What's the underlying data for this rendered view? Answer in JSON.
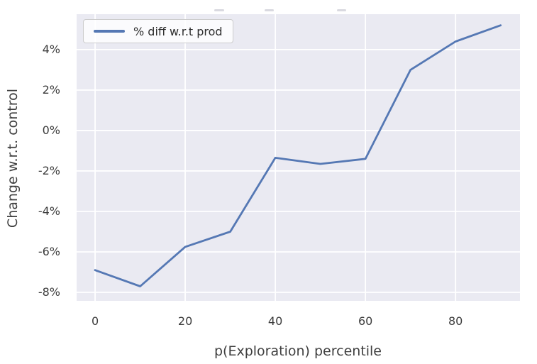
{
  "chart_data": {
    "type": "line",
    "title": "",
    "x": [
      0,
      10,
      20,
      30,
      40,
      50,
      60,
      70,
      80,
      90
    ],
    "series": [
      {
        "name": "% diff w.r.t prod",
        "values": [
          -6.9,
          -7.7,
          -5.75,
          -5.0,
          -1.35,
          -1.65,
          -1.4,
          3.0,
          4.4,
          5.2
        ]
      }
    ],
    "xlabel": "p(Exploration) percentile",
    "ylabel": "Change w.r.t. control",
    "xlim": [
      -4.1,
      94.3
    ],
    "ylim": [
      -8.42,
      5.75
    ],
    "x_ticks": {
      "values": [
        0,
        20,
        40,
        60,
        80
      ],
      "labels": [
        "0",
        "20",
        "40",
        "60",
        "80"
      ]
    },
    "y_ticks": {
      "values": [
        4,
        2,
        0,
        -2,
        -4,
        -6,
        -8
      ],
      "labels": [
        "4%",
        "2%",
        "0%",
        "-2%",
        "-4%",
        "-6%",
        "-8%"
      ]
    },
    "grid": true,
    "legend": {
      "position": "upper left",
      "entries": [
        {
          "label": "% diff w.r.t prod",
          "color": "#5578b4"
        }
      ]
    },
    "colors": {
      "line": "#5578b4",
      "plot_bg": "#eaeaf2",
      "grid": "#ffffff",
      "tick_text": "#3c3c3c",
      "legend_border": "#cccccc"
    }
  }
}
